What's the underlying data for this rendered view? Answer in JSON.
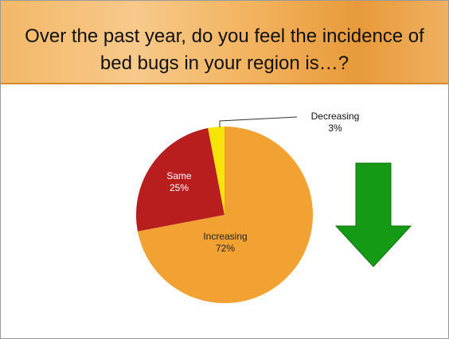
{
  "chart_data": {
    "type": "pie",
    "title": "Over the past year, do you feel the incidence of bed bugs in your region is…?",
    "categories": [
      "Increasing",
      "Same",
      "Decreasing"
    ],
    "values": [
      72,
      25,
      3
    ],
    "value_labels": [
      "72%",
      "25%",
      "3%"
    ],
    "colors": [
      "#f2a232",
      "#b81e1e",
      "#f7e40a"
    ]
  }
}
